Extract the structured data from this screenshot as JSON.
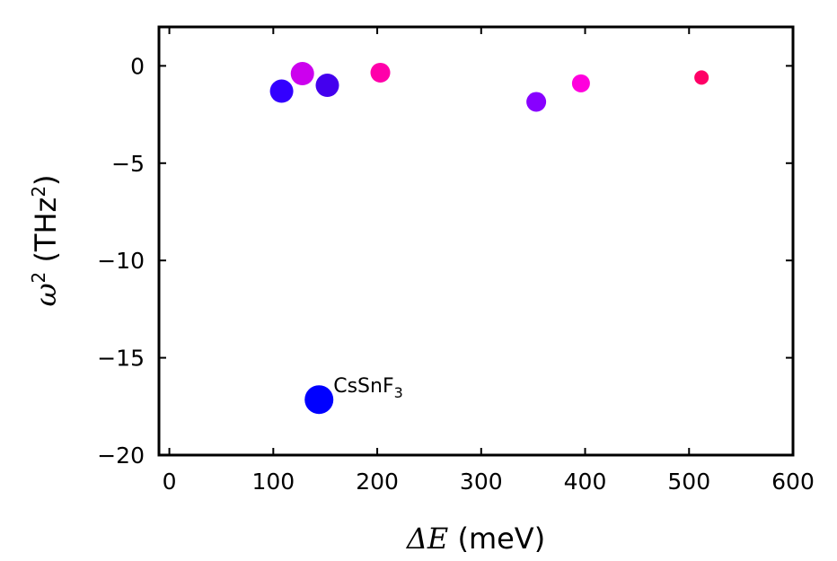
{
  "chart_data": {
    "type": "scatter",
    "title": "",
    "xlabel": {
      "symbol": "ΔE",
      "unit": " (meV)"
    },
    "ylabel": {
      "symbol": "ω",
      "sup": "2",
      "unit_pre": " (THz",
      "unit_sup": "2",
      "unit_post": ")"
    },
    "xlim": [
      -10,
      600
    ],
    "ylim": [
      -20,
      2
    ],
    "xticks": [
      0,
      100,
      200,
      300,
      400,
      500,
      600
    ],
    "yticks": [
      0,
      -5,
      -10,
      -15,
      -20
    ],
    "xtick_labels": [
      "0",
      "100",
      "200",
      "300",
      "400",
      "500",
      "600"
    ],
    "ytick_labels": [
      "0",
      "−5",
      "−10",
      "−15",
      "−20"
    ],
    "grid": false,
    "points": [
      {
        "x": 108,
        "y": -1.3,
        "color": "#3300ff",
        "size": "large"
      },
      {
        "x": 128,
        "y": -0.4,
        "color": "#cc00ee",
        "size": "large"
      },
      {
        "x": 152,
        "y": -1.0,
        "color": "#4400ee",
        "size": "large"
      },
      {
        "x": 203,
        "y": -0.35,
        "color": "#ff00aa",
        "size": "medium"
      },
      {
        "x": 353,
        "y": -1.85,
        "color": "#8800ff",
        "size": "medium"
      },
      {
        "x": 396,
        "y": -0.9,
        "color": "#ff00dd",
        "size": "small"
      },
      {
        "x": 512,
        "y": -0.6,
        "color": "#ff0066",
        "size": "xsmall"
      },
      {
        "x": 144,
        "y": -17.15,
        "color": "#0000ff",
        "size": "xlarge"
      }
    ],
    "annotations": [
      {
        "text": "CsSnF",
        "sub": "3",
        "x": 144,
        "y": -17.15
      }
    ]
  }
}
